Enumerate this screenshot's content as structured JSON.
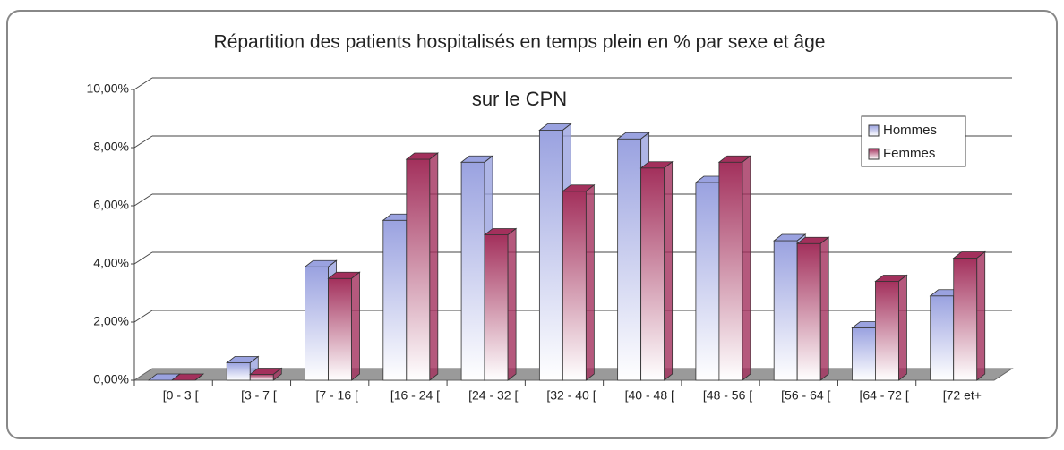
{
  "chart_data": {
    "type": "bar3d",
    "title": "Répartition des patients hospitalisés en temps plein en % par sexe et âge",
    "subtitle": "sur le CPN",
    "categories": [
      "[0 - 3 [",
      "[3 - 7 [",
      "[7 - 16 [",
      "[16 - 24 [",
      "[24 - 32 [",
      "[32 - 40 [",
      "[40 - 48 [",
      "[48 - 56 [",
      "[56 - 64 [",
      "[64 - 72 [",
      "[72 et+"
    ],
    "series": [
      {
        "name": "Hommes",
        "color": "#9aa2e0",
        "values": [
          0,
          0.6,
          3.9,
          5.5,
          7.5,
          8.6,
          8.3,
          6.8,
          4.8,
          1.8,
          2.9
        ]
      },
      {
        "name": "Femmes",
        "color": "#a3305c",
        "values": [
          0,
          0.2,
          3.5,
          7.6,
          5.0,
          6.5,
          7.3,
          7.5,
          4.7,
          3.4,
          4.2
        ]
      }
    ],
    "ylim": [
      0,
      10
    ],
    "yticks": [
      {
        "value": 0,
        "label": "0,00%"
      },
      {
        "value": 2,
        "label": "2,00%"
      },
      {
        "value": 4,
        "label": "4,00%"
      },
      {
        "value": 6,
        "label": "6,00%"
      },
      {
        "value": 8,
        "label": "8,00%"
      },
      {
        "value": 10,
        "label": "10,00%"
      }
    ],
    "grid": true,
    "legend": "top-right"
  }
}
